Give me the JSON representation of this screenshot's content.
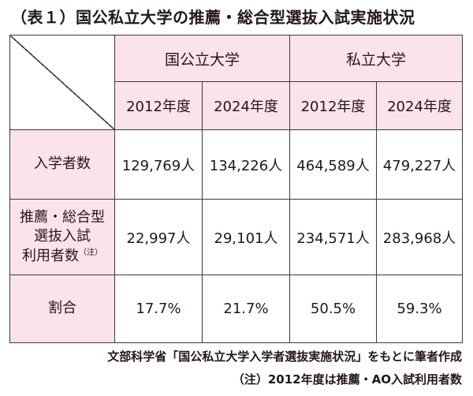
{
  "title": "（表１）国公私立大学の推薦・総合型選抜入試実施状況",
  "table": {
    "groups": [
      "国公立大学",
      "私立大学"
    ],
    "years": [
      "2012年度",
      "2024年度",
      "2012年度",
      "2024年度"
    ],
    "rows": [
      {
        "label_lines": [
          "入学者数"
        ],
        "values": [
          "129,769人",
          "134,226人",
          "464,589人",
          "479,227人"
        ]
      },
      {
        "label_lines": [
          "推薦・総合型",
          "選抜入試",
          "利用者数"
        ],
        "note_mark": "（注）",
        "values": [
          "22,997人",
          "29,101人",
          "234,571人",
          "283,968人"
        ]
      },
      {
        "label_lines": [
          "割合"
        ],
        "values": [
          "17.7%",
          "21.7%",
          "50.5%",
          "59.3%"
        ]
      }
    ]
  },
  "source": "文部科学省「国公私立大学入学者選抜実施状況」をもとに筆者作成",
  "footnote": "（注）2012年度は推薦・AO入試利用者数",
  "colors": {
    "header_fill": "#fbe3ea",
    "border": "#3e3a39",
    "text": "#231815"
  }
}
